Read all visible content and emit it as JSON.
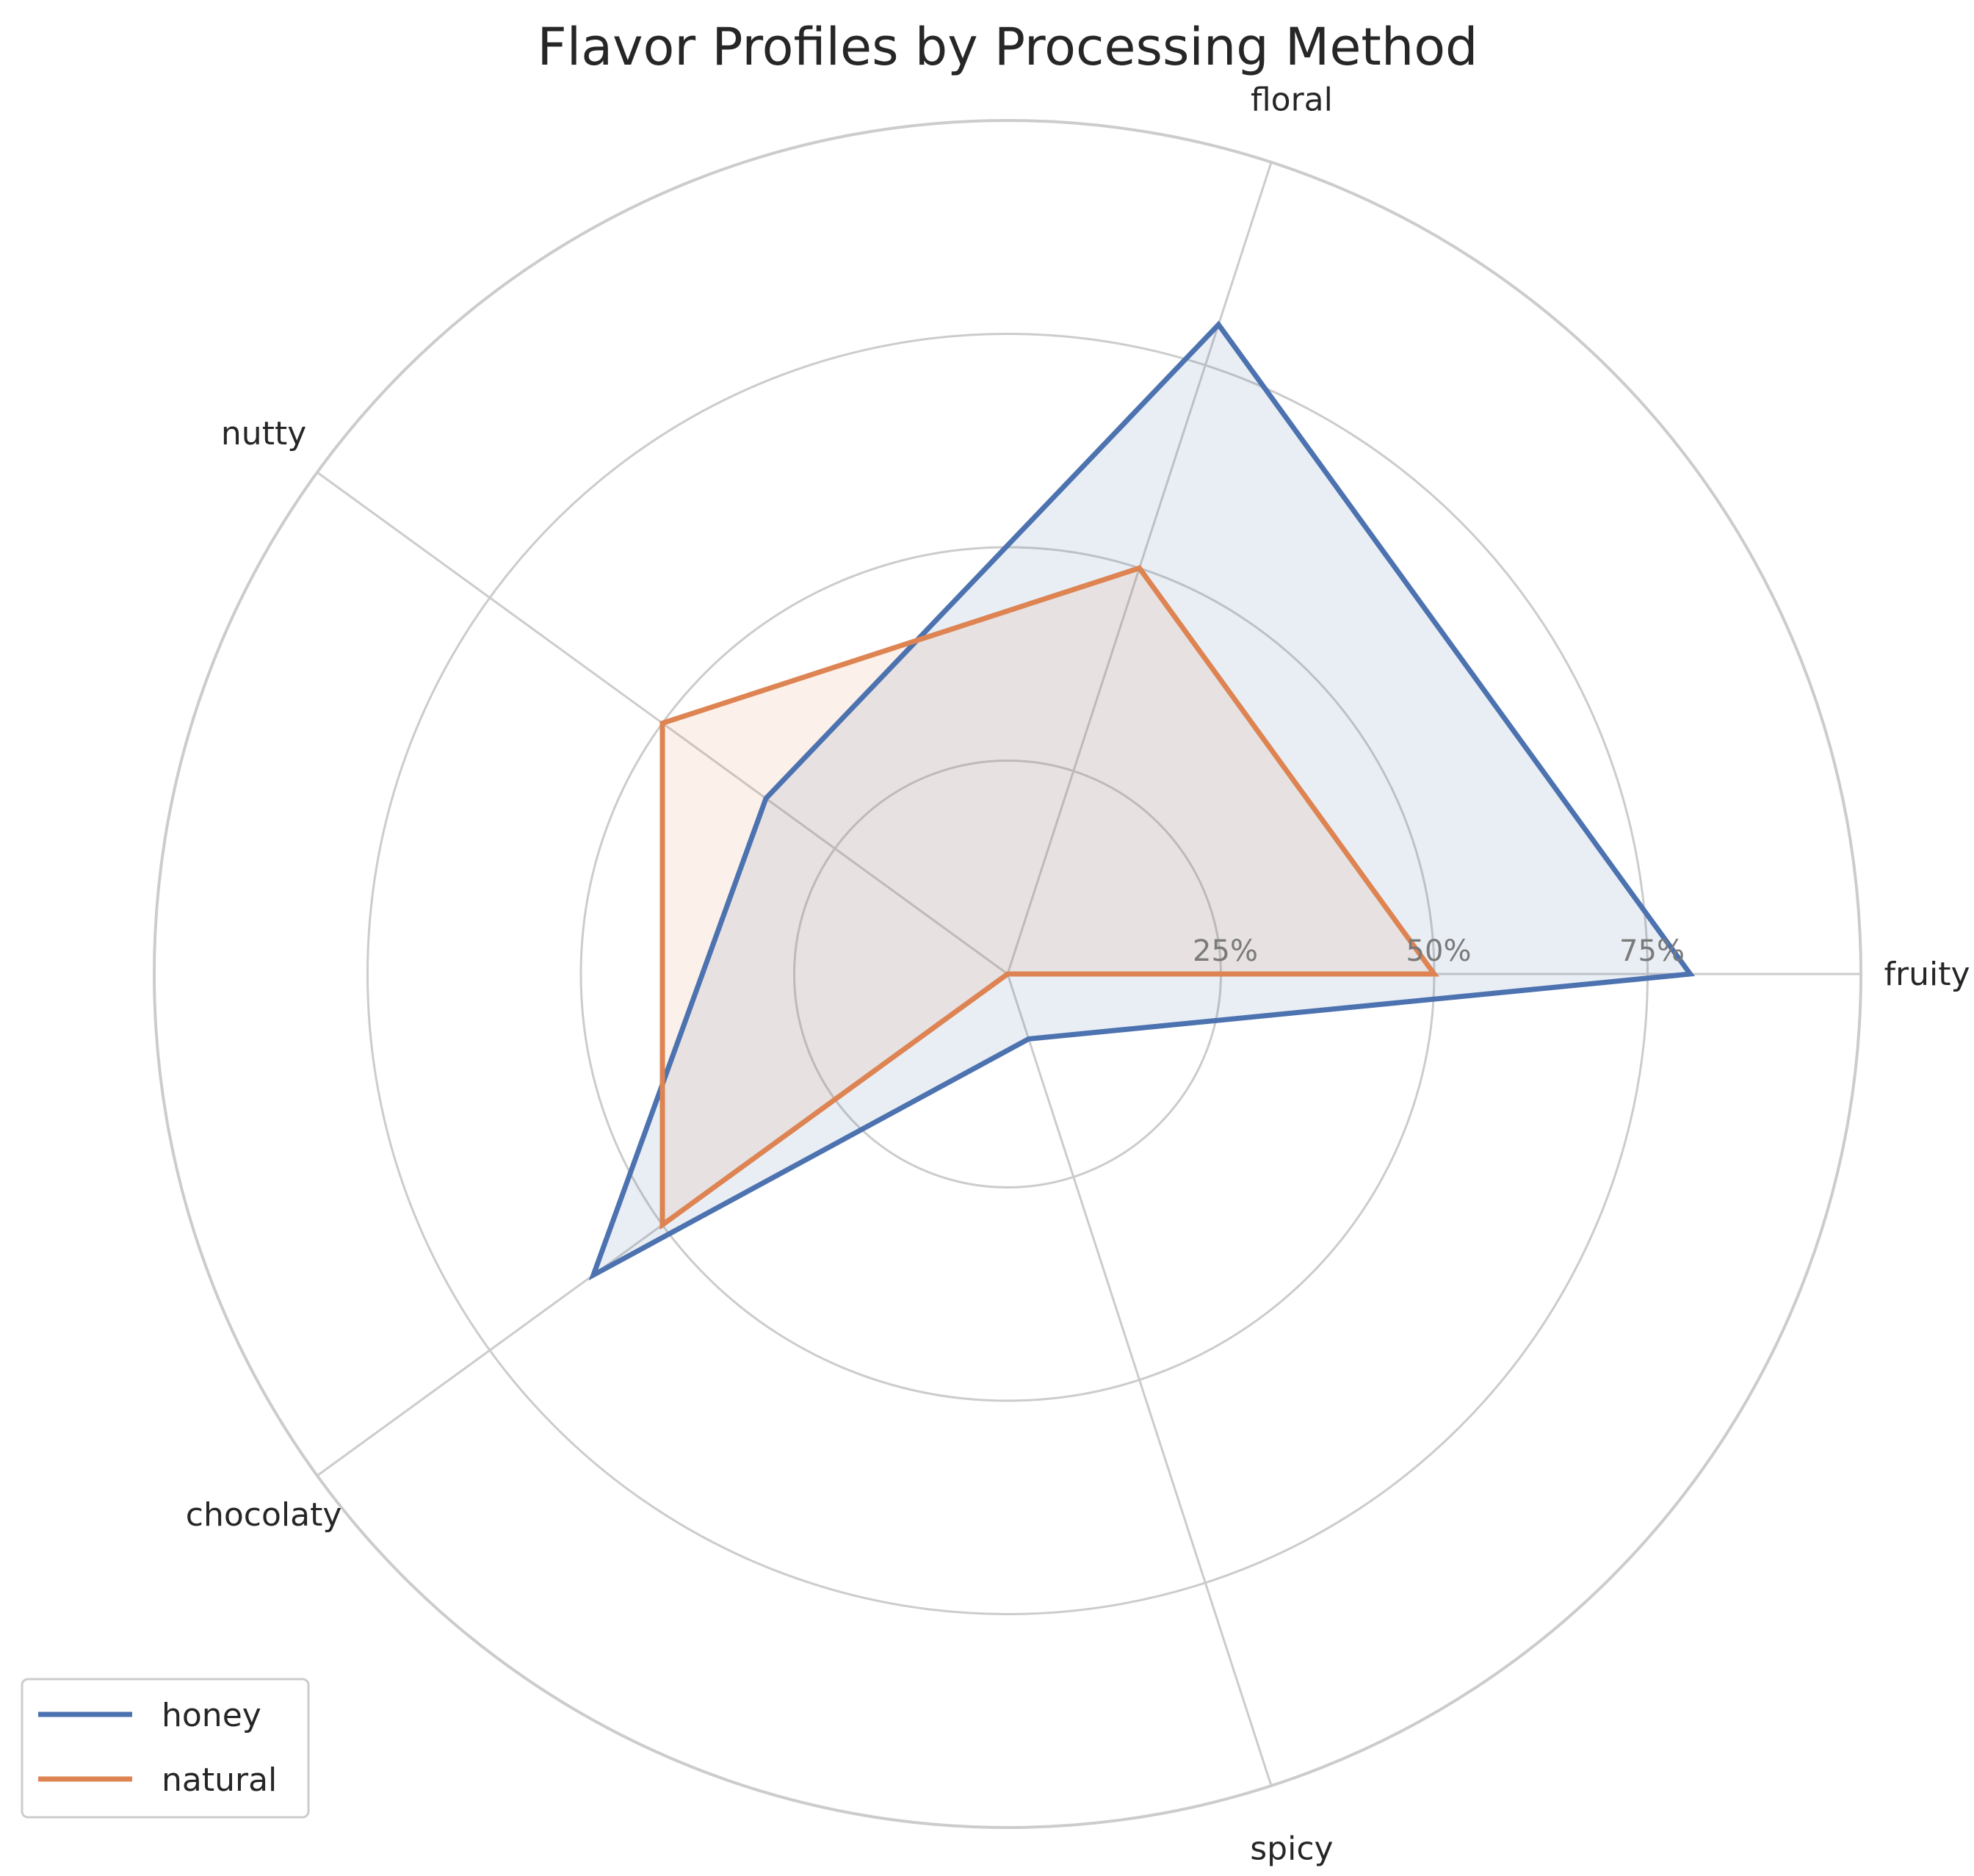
{
  "chart_data": {
    "type": "radar",
    "title": "Flavor Profiles by Processing Method",
    "categories": [
      "fruity",
      "floral",
      "nutty",
      "chocolaty",
      "spicy"
    ],
    "series": [
      {
        "name": "honey",
        "values": [
          80,
          80,
          35,
          60,
          8
        ],
        "color": "#4c72b0"
      },
      {
        "name": "natural",
        "values": [
          50,
          50,
          50,
          50,
          0
        ],
        "color": "#dd8452"
      }
    ],
    "rlim": [
      0,
      100
    ],
    "radial_ticks": [
      25,
      50,
      75,
      100
    ],
    "radial_tick_labels": [
      "25%",
      "50%",
      "75%"
    ],
    "grid": true,
    "legend_position": "lower-left"
  }
}
